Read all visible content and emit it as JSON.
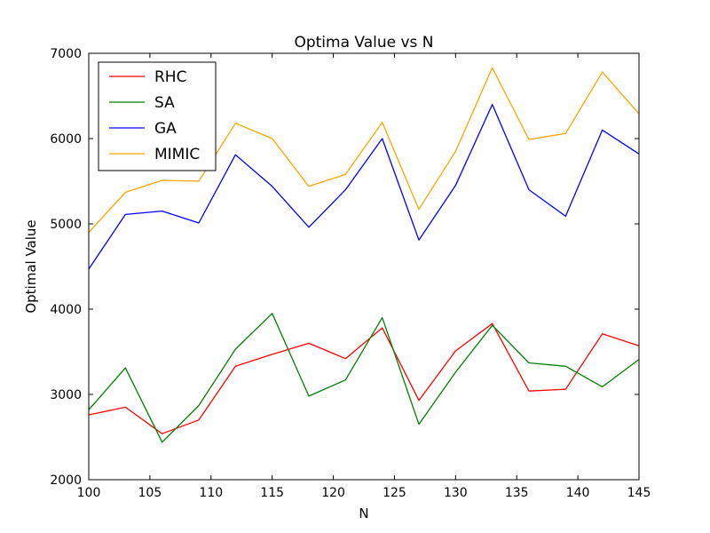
{
  "chart_data": {
    "type": "line",
    "title": "Optima Value vs N",
    "xlabel": "N",
    "ylabel": "Optimal Value",
    "xlim": [
      100,
      145
    ],
    "ylim": [
      2000,
      7000
    ],
    "xticks": [
      100,
      105,
      110,
      115,
      120,
      125,
      130,
      135,
      140,
      145
    ],
    "yticks": [
      2000,
      3000,
      4000,
      5000,
      6000,
      7000
    ],
    "grid": false,
    "legend_position": "top-left",
    "x": [
      100,
      103,
      106,
      109,
      112,
      115,
      118,
      121,
      124,
      127,
      130,
      133,
      136,
      139,
      142,
      145
    ],
    "series": [
      {
        "name": "RHC",
        "color": "#ff0000",
        "values": [
          2760,
          2850,
          2540,
          2700,
          3330,
          3470,
          3600,
          3420,
          3780,
          2930,
          3510,
          3830,
          3040,
          3060,
          3710,
          3570
        ]
      },
      {
        "name": "SA",
        "color": "#008000",
        "values": [
          2820,
          3310,
          2440,
          2870,
          3530,
          3950,
          2980,
          3170,
          3900,
          2650,
          3260,
          3810,
          3370,
          3330,
          3090,
          3410
        ]
      },
      {
        "name": "GA",
        "color": "#0000ff",
        "values": [
          4470,
          5110,
          5150,
          5010,
          5810,
          5440,
          4960,
          5400,
          6000,
          4810,
          5450,
          6400,
          5400,
          5090,
          6100,
          5820
        ]
      },
      {
        "name": "MIMIC",
        "color": "#ffa500",
        "values": [
          4900,
          5370,
          5510,
          5500,
          6180,
          6000,
          5440,
          5580,
          6190,
          5170,
          5850,
          6830,
          5990,
          6060,
          6780,
          6290
        ]
      }
    ]
  }
}
